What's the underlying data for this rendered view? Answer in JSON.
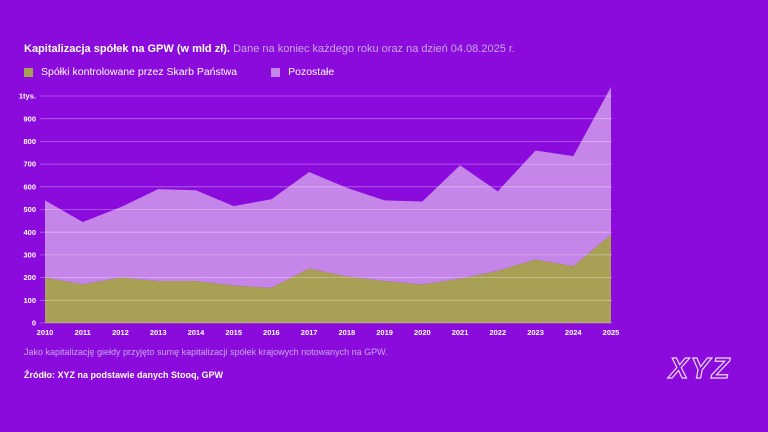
{
  "header": {
    "title": "Kapitalizacja spółek na GPW (w mld zł).",
    "subtitle": "Dane na koniec każdego roku oraz na dzień 04.08.2025 r."
  },
  "legend": [
    {
      "label": "Spółki kontrolowane przez Skarb Państwa",
      "color": "#A8A055"
    },
    {
      "label": "Pozostałe",
      "color": "#C685E9"
    }
  ],
  "chart_data": {
    "type": "area",
    "stacked": true,
    "title": "Kapitalizacja spółek na GPW (w mld zł)",
    "x": [
      2010,
      2011,
      2012,
      2013,
      2014,
      2015,
      2016,
      2017,
      2018,
      2019,
      2020,
      2021,
      2022,
      2023,
      2024,
      2025
    ],
    "series": [
      {
        "name": "Spółki kontrolowane przez Skarb Państwa",
        "color": "#A8A055",
        "values": [
          200,
          170,
          200,
          185,
          185,
          165,
          155,
          240,
          205,
          185,
          170,
          195,
          230,
          280,
          250,
          390
        ]
      },
      {
        "name": "Pozostałe",
        "color": "#C685E9",
        "values": [
          340,
          275,
          310,
          405,
          400,
          350,
          390,
          425,
          390,
          355,
          365,
          500,
          350,
          480,
          485,
          650
        ]
      }
    ],
    "totals": [
      540,
      445,
      510,
      590,
      585,
      515,
      545,
      665,
      595,
      540,
      535,
      695,
      580,
      760,
      735,
      1040
    ],
    "ylim": [
      0,
      1000
    ],
    "ytick_step": 100,
    "ytick_top_label": "1tys.",
    "grid": true,
    "legend_position": "top-left"
  },
  "footer": {
    "note": "Jako kapitalizację giełdy przyjęto sumę kapitalizacji spółek krajowych notowanych na GPW.",
    "source": "Źródło: XYZ na podstawie danych Stooq, GPW"
  },
  "logo": {
    "text": "XYZ"
  },
  "colors": {
    "background": "#8A0BDC",
    "state_area": "#A8A055",
    "others_area": "#C685E9",
    "grid": "rgba(255,255,255,0.38)",
    "axis_text": "#FFFFFF",
    "muted_text": "#C9A6EF"
  }
}
